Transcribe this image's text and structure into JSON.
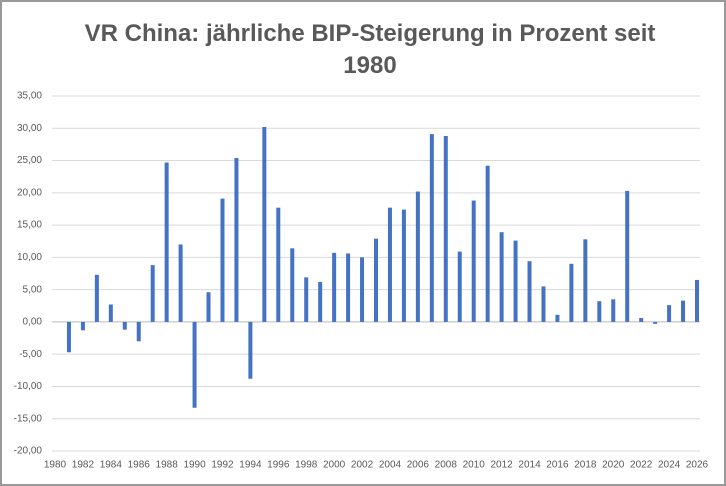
{
  "chart_data": {
    "type": "bar",
    "title": "VR China: jährliche BIP-Steigerung in Prozent seit 1980",
    "categories": [
      "1980",
      null,
      "1982",
      null,
      "1984",
      null,
      "1986",
      null,
      "1988",
      null,
      "1990",
      null,
      "1992",
      null,
      "1994",
      null,
      "1996",
      null,
      "1998",
      null,
      "2000",
      null,
      "2002",
      null,
      "2004",
      null,
      "2006",
      null,
      "2008",
      null,
      "2010",
      null,
      "2012",
      null,
      "2014",
      null,
      "2016",
      null,
      "2018",
      null,
      "2020",
      null,
      "2022",
      null,
      "2024",
      null,
      "2026"
    ],
    "values": [
      null,
      -4.7,
      -1.3,
      7.3,
      2.7,
      -1.2,
      -3.0,
      8.8,
      24.7,
      12.0,
      -13.3,
      4.6,
      19.1,
      25.4,
      -8.8,
      30.2,
      17.7,
      11.4,
      6.9,
      6.2,
      10.7,
      10.6,
      10.0,
      12.9,
      17.7,
      17.4,
      20.2,
      29.1,
      28.8,
      10.9,
      18.8,
      24.2,
      13.9,
      12.6,
      9.4,
      5.5,
      1.1,
      9.0,
      12.8,
      3.2,
      3.5,
      20.3,
      0.6,
      -0.3,
      2.6,
      3.3,
      6.5
    ],
    "color": "#4472c4",
    "ylim": [
      -20,
      35
    ],
    "yticks": [
      {
        "value": -20,
        "label": "-20,00"
      },
      {
        "value": -15,
        "label": "-15,00"
      },
      {
        "value": -10,
        "label": "-10,00"
      },
      {
        "value": -5,
        "label": "-5,00"
      },
      {
        "value": 0,
        "label": "0,00"
      },
      {
        "value": 5,
        "label": "5,00"
      },
      {
        "value": 10,
        "label": "10,00"
      },
      {
        "value": 15,
        "label": "15,00"
      },
      {
        "value": 20,
        "label": "20,00"
      },
      {
        "value": 25,
        "label": "25,00"
      },
      {
        "value": 30,
        "label": "30,00"
      },
      {
        "value": 35,
        "label": "35,00"
      }
    ],
    "grid": true
  }
}
